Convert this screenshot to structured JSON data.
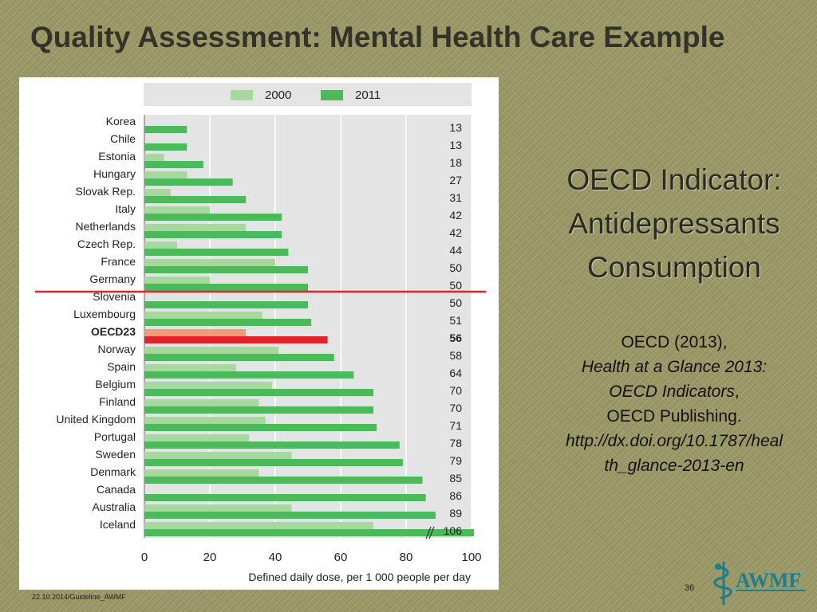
{
  "slide": {
    "title": "Quality Assessment:  Mental Health Care Example",
    "side_heading": [
      "OECD Indicator:",
      "Antidepressants",
      "Consumption"
    ],
    "citation": {
      "line1": "OECD (2013),",
      "line2": "Health at a Glance 2013:",
      "line3_italic": "OECD Indicators",
      "line3_rest": ",",
      "line4": "OECD Publishing.",
      "line5": "http://dx.doi.org/10.1787/heal",
      "line6": "th_glance-2013-en"
    },
    "footer": "22.10.2014/Guideline_AWMF",
    "page_number": "36",
    "logo_text": "AWMF"
  },
  "colors": {
    "bar_2000": "#a6d99d",
    "bar_2011": "#4cb95a",
    "highlight_2000": "#f29b7a",
    "highlight_2011": "#e0242b",
    "reference_line": "#e0242b",
    "logo": "#1e7d8f"
  },
  "chart_data": {
    "type": "bar",
    "orientation": "horizontal",
    "xlabel": "Defined daily dose, per 1 000 people per day",
    "xlim": [
      0,
      100
    ],
    "xticks": [
      0,
      20,
      40,
      60,
      80,
      100
    ],
    "grid": true,
    "legend_position": "top",
    "categories": [
      "Korea",
      "Chile",
      "Estonia",
      "Hungary",
      "Slovak Rep.",
      "Italy",
      "Netherlands",
      "Czech Rep.",
      "France",
      "Germany",
      "Slovenia",
      "Luxembourg",
      "OECD23",
      "Norway",
      "Spain",
      "Belgium",
      "Finland",
      "United Kingdom",
      "Portugal",
      "Sweden",
      "Denmark",
      "Canada",
      "Australia",
      "Iceland"
    ],
    "highlight_category": "OECD23",
    "series": [
      {
        "name": "2000",
        "values": [
          null,
          null,
          6,
          13,
          8,
          20,
          31,
          10,
          40,
          20,
          null,
          36,
          31,
          41,
          28,
          39,
          35,
          37,
          32,
          45,
          35,
          null,
          45,
          70
        ]
      },
      {
        "name": "2011",
        "values": [
          13,
          13,
          18,
          27,
          31,
          42,
          42,
          44,
          50,
          50,
          50,
          51,
          56,
          58,
          64,
          70,
          70,
          71,
          78,
          79,
          85,
          86,
          89,
          106
        ]
      }
    ],
    "value_labels": [
      "13",
      "13",
      "18",
      "27",
      "31",
      "42",
      "42",
      "44",
      "50",
      "50",
      "50",
      "51",
      "56",
      "58",
      "64",
      "70",
      "70",
      "71",
      "78",
      "79",
      "85",
      "86",
      "89",
      "106"
    ],
    "reference_line_after_category": "Germany",
    "axis_break_category": "Iceland"
  }
}
